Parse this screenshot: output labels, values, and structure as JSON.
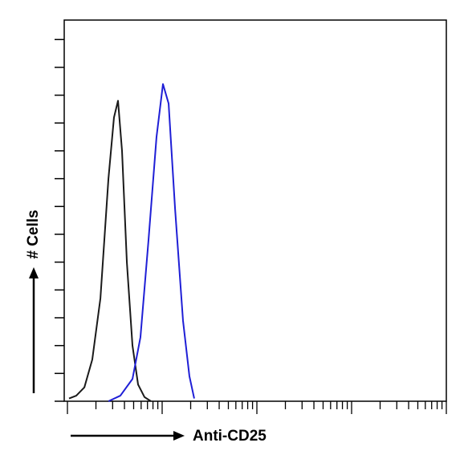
{
  "chart_data": {
    "type": "line",
    "xlabel": "Anti-CD25",
    "ylabel": "# Cells",
    "xlog": true,
    "xlim": [
      1,
      10000
    ],
    "xticks": [
      1,
      2,
      3,
      4,
      5,
      6,
      7,
      8,
      9,
      10,
      20,
      30,
      40,
      50,
      60,
      70,
      80,
      90,
      100,
      200,
      300,
      400,
      500,
      600,
      700,
      800,
      900,
      1000,
      2000,
      3000,
      4000,
      5000,
      6000,
      7000,
      8000,
      9000,
      10000
    ],
    "ylim": [
      0,
      13.7
    ],
    "yticks": [
      0,
      1,
      2,
      3,
      4,
      5,
      6,
      7,
      8,
      9,
      10,
      11,
      12,
      13
    ],
    "series": [
      {
        "color": "#1a1a1a",
        "x": [
          1.04,
          1.24,
          1.51,
          1.83,
          2.23,
          2.71,
          3.1,
          3.42,
          3.77,
          4.24,
          4.86,
          5.57,
          6.51,
          7.61
        ],
        "values": [
          0.1,
          0.2,
          0.5,
          1.5,
          3.7,
          8.0,
          10.2,
          10.8,
          9.0,
          5.0,
          2.0,
          0.6,
          0.15,
          0
        ]
      },
      {
        "color": "#1f1fd6",
        "x": [
          2.71,
          3.62,
          4.86,
          5.9,
          7.18,
          8.72,
          10.2,
          11.7,
          13.7,
          16.6,
          19.4,
          21.8
        ],
        "values": [
          0,
          0.2,
          0.8,
          2.3,
          5.8,
          9.5,
          11.4,
          10.7,
          6.9,
          2.9,
          0.9,
          0.1
        ]
      }
    ]
  }
}
